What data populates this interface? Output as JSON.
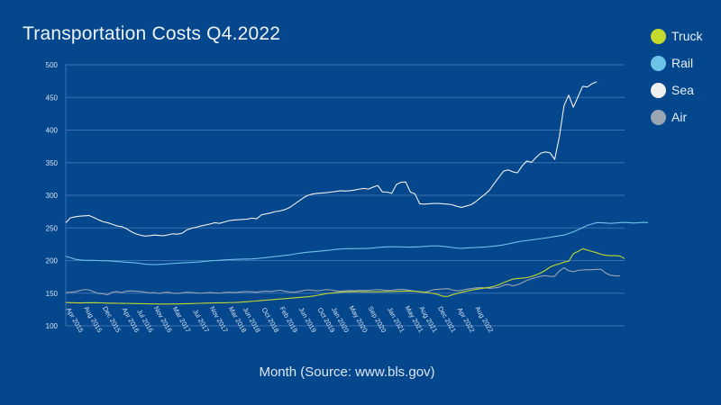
{
  "chart_data": {
    "type": "line",
    "title": "Transportation Costs Q4.2022",
    "xlabel": "Month (Source: www.bls.gov)",
    "ylabel": "",
    "ylim": [
      100,
      500
    ],
    "yticks": [
      100,
      150,
      200,
      250,
      300,
      350,
      400,
      450,
      500
    ],
    "xticks": [
      "Apr 2015",
      "Aug 2015",
      "Dec 2015",
      "Apr 2016",
      "Jul 2016",
      "Nov 2016",
      "Mar 2017",
      "Jul 2017",
      "Nov 2017",
      "Mar 2018",
      "Jun 2018",
      "Oct 2018",
      "Feb 2019",
      "Jun 2019",
      "Oct 2019",
      "Jan 2020",
      "May 2020",
      "Sep 2020",
      "Jan 2021",
      "May 2021",
      "Aug 2021",
      "Dec 2021",
      "Apr 2022",
      "Aug 2022"
    ],
    "x_start": "Jan 2015",
    "x_end": "Dec 2022",
    "grid": true,
    "legend_position": "top-right",
    "series": [
      {
        "name": "Truck",
        "color": "#c5d92f",
        "values": [
          135.6,
          135.4,
          135.2,
          135.1,
          135.2,
          135.3,
          135.4,
          135.3,
          135.0,
          134.8,
          134.6,
          134.5,
          134.4,
          134.3,
          134.2,
          134.0,
          133.9,
          133.8,
          133.6,
          133.5,
          133.4,
          133.3,
          133.4,
          133.5,
          133.6,
          133.7,
          133.9,
          134.1,
          134.3,
          134.5,
          134.7,
          134.9,
          135.1,
          135.2,
          135.3,
          135.5,
          135.7,
          135.9,
          136.4,
          137.0,
          137.6,
          138.1,
          138.7,
          139.3,
          139.9,
          140.5,
          141.1,
          141.7,
          142.2,
          142.8,
          143.4,
          144.0,
          144.6,
          145.4,
          146.7,
          148.0,
          149.3,
          150.1,
          150.8,
          151.5,
          152.0,
          152.2,
          152.3,
          152.3,
          152.2,
          152.1,
          152.1,
          152.2,
          152.3,
          152.4,
          152.6,
          152.8,
          153.0,
          153.2,
          153.2,
          152.8,
          152.3,
          151.5,
          150.5,
          149.5,
          147.8,
          145.2,
          145.0,
          147.5,
          149.5,
          151.5,
          153.0,
          154.5,
          155.8,
          157.0,
          158.0,
          159.0,
          160.5,
          163.0,
          166.0,
          169.0,
          171.5,
          172.5,
          173.0,
          173.8,
          175.5,
          178.0,
          181.0,
          185.0,
          190.0,
          193.0,
          195.0,
          197.5,
          199.0,
          210.5,
          214.0,
          218.0,
          216.0,
          214.0,
          212.0,
          209.5,
          208.0,
          207.5,
          207.5,
          207.0,
          203.0
        ]
      },
      {
        "name": "Rail",
        "color": "#6cc4e8",
        "values": [
          206.5,
          204.5,
          202.0,
          201.0,
          200.5,
          200.3,
          200.2,
          200.0,
          199.8,
          199.5,
          199.0,
          198.5,
          198.0,
          197.5,
          197.0,
          196.5,
          195.5,
          194.5,
          194.0,
          193.8,
          194.0,
          194.5,
          195.0,
          195.5,
          196.0,
          196.5,
          196.8,
          197.2,
          197.6,
          198.0,
          198.8,
          199.5,
          200.0,
          200.5,
          201.0,
          201.4,
          201.7,
          202.0,
          202.2,
          202.3,
          202.5,
          203.0,
          203.8,
          204.6,
          205.4,
          206.2,
          207.0,
          207.8,
          208.6,
          209.8,
          211.0,
          212.0,
          212.8,
          213.4,
          214.0,
          214.7,
          215.4,
          216.2,
          217.2,
          217.7,
          218.0,
          218.2,
          218.3,
          218.4,
          218.5,
          218.7,
          219.2,
          220.0,
          220.6,
          221.0,
          221.1,
          221.1,
          220.9,
          220.7,
          220.6,
          220.8,
          221.1,
          221.6,
          222.1,
          222.6,
          222.4,
          221.8,
          221.0,
          220.0,
          219.0,
          218.8,
          219.2,
          219.6,
          220.0,
          220.4,
          220.8,
          221.4,
          222.1,
          223.0,
          224.0,
          225.5,
          227.0,
          228.5,
          229.8,
          230.7,
          231.6,
          232.6,
          233.6,
          234.6,
          235.7,
          236.8,
          238.0,
          239.0,
          241.5,
          244.0,
          247.0,
          250.5,
          254.0,
          256.0,
          258.0,
          258.0,
          257.5,
          257.0,
          257.5,
          258.0,
          258.5,
          258.0,
          257.5,
          258.0,
          258.5,
          258.0
        ]
      },
      {
        "name": "Sea",
        "color": "#f0f0ee",
        "values": [
          258.0,
          265.5,
          267.0,
          268.0,
          268.5,
          269.0,
          266.0,
          262.5,
          259.5,
          258.0,
          255.5,
          253.0,
          252.0,
          249.0,
          244.5,
          241.0,
          239.0,
          237.5,
          238.0,
          239.0,
          238.5,
          238.0,
          239.5,
          241.0,
          240.5,
          242.0,
          247.0,
          249.5,
          251.0,
          253.0,
          254.5,
          256.0,
          258.0,
          257.0,
          259.0,
          261.0,
          262.0,
          262.5,
          263.0,
          263.5,
          265.0,
          264.0,
          270.0,
          271.5,
          273.0,
          275.0,
          276.0,
          278.0,
          281.0,
          286.0,
          291.0,
          296.0,
          300.0,
          302.0,
          303.0,
          303.5,
          304.0,
          305.0,
          306.0,
          307.0,
          306.5,
          307.0,
          308.0,
          309.5,
          310.5,
          309.5,
          312.5,
          315.0,
          305.0,
          305.0,
          303.0,
          316.5,
          320.0,
          320.5,
          305.0,
          302.0,
          287.0,
          286.5,
          287.0,
          287.5,
          287.5,
          287.0,
          286.5,
          285.5,
          283.0,
          281.5,
          283.5,
          285.5,
          290.0,
          296.0,
          301.5,
          308.0,
          318.0,
          327.5,
          337.0,
          339.0,
          336.0,
          334.5,
          345.0,
          352.5,
          350.5,
          358.0,
          364.5,
          366.5,
          365.0,
          355.0,
          390.0,
          437.5,
          453.5,
          435.0,
          451.0,
          467.0,
          466.0,
          471.0,
          474.0
        ]
      },
      {
        "name": "Air",
        "color": "#9aa5b3",
        "values": [
          151.0,
          151.5,
          152.0,
          154.0,
          155.5,
          155.0,
          152.0,
          149.5,
          149.0,
          147.5,
          151.5,
          152.5,
          151.0,
          153.0,
          153.5,
          153.0,
          152.5,
          151.5,
          150.5,
          151.0,
          149.5,
          151.0,
          151.5,
          150.0,
          149.5,
          150.5,
          151.5,
          151.0,
          150.5,
          150.0,
          150.5,
          151.0,
          150.5,
          150.0,
          151.0,
          151.5,
          151.0,
          151.5,
          152.0,
          152.5,
          152.0,
          151.5,
          152.5,
          153.0,
          152.5,
          153.5,
          154.5,
          153.0,
          152.0,
          151.5,
          152.5,
          154.0,
          155.0,
          154.5,
          153.5,
          154.5,
          155.5,
          155.0,
          153.5,
          153.0,
          153.5,
          154.0,
          153.5,
          154.5,
          154.0,
          154.5,
          155.0,
          155.5,
          155.0,
          154.0,
          154.5,
          155.5,
          156.0,
          155.5,
          154.0,
          153.0,
          152.0,
          151.5,
          153.0,
          155.5,
          156.0,
          156.5,
          157.0,
          155.0,
          153.5,
          154.5,
          156.0,
          157.0,
          158.0,
          158.5,
          158.0,
          157.5,
          158.0,
          159.0,
          162.0,
          163.5,
          161.0,
          163.0,
          166.0,
          169.5,
          172.0,
          174.0,
          176.0,
          177.0,
          175.5,
          176.0,
          184.0,
          189.0,
          184.5,
          183.0,
          185.0,
          185.5,
          186.0,
          186.0,
          186.5,
          186.5,
          180.5,
          177.5,
          176.5,
          176.5
        ]
      }
    ]
  }
}
